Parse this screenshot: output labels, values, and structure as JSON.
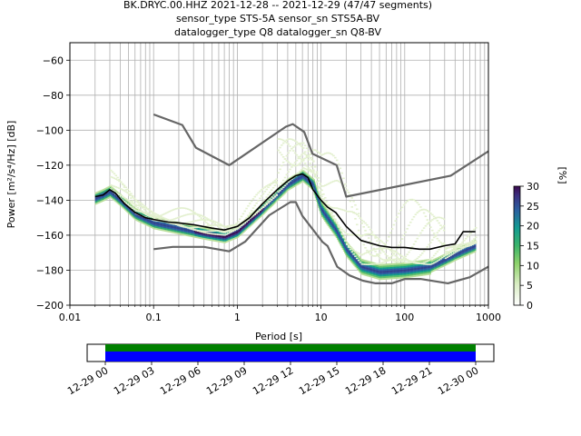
{
  "chart_data": [
    {
      "type": "heatmap",
      "title": [
        "BK.DRYC.00.HHZ   2021-12-28 -- 2021-12-29  (47/47 segments)",
        "sensor_type STS-5A sensor_sn STS5A-BV",
        "datalogger_type Q8 datalogger_sn Q8-BV"
      ],
      "xlabel": "Period [s]",
      "ylabel": "Power [m²/s⁴/Hz] [dB]",
      "xscale": "log",
      "xlim": [
        0.01,
        1000
      ],
      "ylim": [
        -200,
        -50
      ],
      "xticks": [
        0.01,
        0.1,
        1,
        10,
        100,
        1000
      ],
      "xtick_labels": [
        "0.01",
        "0.1",
        "1",
        "10",
        "100",
        "1000"
      ],
      "yticks": [
        -200,
        -180,
        -160,
        -140,
        -120,
        -100,
        -80,
        -60
      ],
      "ytick_labels": [
        "−200",
        "−180",
        "−160",
        "−140",
        "−120",
        "−100",
        "−80",
        "−60"
      ],
      "grid": true,
      "colorbar": {
        "label": "[%]",
        "min": 0,
        "max": 30,
        "ticks": [
          0,
          5,
          10,
          15,
          20,
          25,
          30
        ],
        "colormap": "pqlx"
      },
      "series": [
        {
          "role": "mode",
          "x": [
            0.02,
            0.025,
            0.03,
            0.035,
            0.045,
            0.06,
            0.08,
            0.1,
            0.15,
            0.2,
            0.3,
            0.5,
            0.7,
            1,
            1.4,
            2,
            3,
            4,
            5,
            6,
            7,
            8,
            10,
            12,
            15,
            20,
            30,
            50,
            70,
            100,
            150,
            200,
            300,
            400,
            500,
            700
          ],
          "y": [
            -138,
            -137,
            -134,
            -136,
            -142,
            -147,
            -150,
            -151,
            -152.5,
            -153,
            -154,
            -156,
            -157,
            -155,
            -150,
            -142,
            -134,
            -129,
            -126,
            -125,
            -127,
            -134,
            -140,
            -144,
            -147,
            -155,
            -163,
            -166,
            -167,
            -167,
            -168,
            -168,
            -166,
            -165,
            -158,
            -158
          ]
        },
        {
          "role": "high_noise_model",
          "x": [
            0.1,
            0.22,
            0.32,
            0.8,
            3.8,
            4.6,
            6.3,
            7.9,
            15.4,
            20,
            354.8,
            1000
          ],
          "y": [
            -91,
            -97,
            -110,
            -120,
            -98,
            -96.5,
            -101,
            -113.5,
            -120,
            -138,
            -126,
            -112
          ]
        },
        {
          "role": "low_noise_model",
          "x": [
            0.1,
            0.17,
            0.4,
            0.8,
            1.24,
            2.4,
            4.3,
            5,
            6,
            10.4,
            12,
            15.6,
            21.9,
            31.6,
            45,
            70,
            101,
            154,
            328,
            600,
            1000
          ],
          "y": [
            -168,
            -166.7,
            -166.7,
            -169.2,
            -163.7,
            -148.6,
            -141.1,
            -141.1,
            -149,
            -163.8,
            -166.2,
            -178,
            -183,
            -186,
            -187.5,
            -187.5,
            -185,
            -185,
            -187.5,
            -184,
            -178
          ]
        },
        {
          "role": "density_ridge",
          "x": [
            0.02,
            0.025,
            0.03,
            0.04,
            0.06,
            0.1,
            0.2,
            0.4,
            0.7,
            1,
            2,
            4,
            6,
            8,
            10,
            15,
            20,
            30,
            50,
            100,
            200,
            300,
            400,
            500,
            700
          ],
          "y": [
            -139,
            -137,
            -135,
            -140,
            -148,
            -153,
            -156,
            -159,
            -161,
            -158,
            -145,
            -131,
            -126,
            -131,
            -145,
            -157,
            -168,
            -178,
            -181,
            -180,
            -178,
            -174,
            -171,
            -169,
            -166
          ]
        }
      ]
    },
    {
      "type": "timeline",
      "xtick_labels": [
        "12-29 00",
        "12-29 03",
        "12-29 06",
        "12-29 09",
        "12-29 12",
        "12-29 15",
        "12-29 18",
        "12-29 21",
        "12-30 00"
      ],
      "bars": [
        {
          "color": "#008000"
        },
        {
          "color": "#0000ff"
        }
      ]
    }
  ]
}
